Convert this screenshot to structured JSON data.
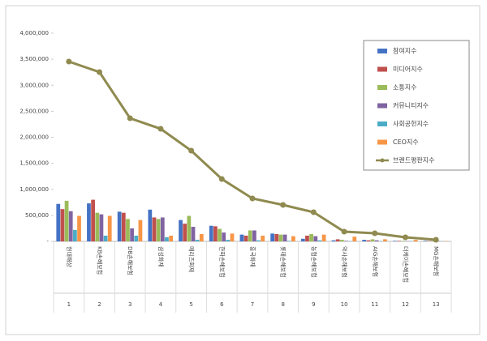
{
  "chart_data": {
    "type": "bar",
    "categories": [
      "현대해상",
      "KB손해보험",
      "DB손해보험",
      "삼성화재",
      "메리츠화재",
      "한화손해보험",
      "흥국화재",
      "롯데손해보험",
      "농협손해보험",
      "악사손해보험",
      "AIG손해보험",
      "더케이손해보험",
      "MG손해보험"
    ],
    "ranks": [
      1,
      2,
      3,
      4,
      5,
      6,
      7,
      8,
      9,
      10,
      11,
      12,
      13
    ],
    "series": [
      {
        "name": "참여지수",
        "color": "#4472c4",
        "values": [
          720000,
          730000,
          570000,
          610000,
          410000,
          300000,
          130000,
          150000,
          50000,
          20000,
          30000,
          10000,
          10000
        ]
      },
      {
        "name": "미디어지수",
        "color": "#c0504d",
        "values": [
          620000,
          800000,
          550000,
          460000,
          340000,
          290000,
          110000,
          140000,
          110000,
          40000,
          20000,
          10000,
          5000
        ]
      },
      {
        "name": "소통지수",
        "color": "#9bbb59",
        "values": [
          780000,
          550000,
          430000,
          430000,
          490000,
          240000,
          210000,
          130000,
          140000,
          30000,
          40000,
          10000,
          10000
        ]
      },
      {
        "name": "커뮤니티지수",
        "color": "#8064a2",
        "values": [
          580000,
          520000,
          250000,
          460000,
          280000,
          170000,
          210000,
          130000,
          100000,
          10000,
          20000,
          5000,
          5000
        ]
      },
      {
        "name": "사회공헌지수",
        "color": "#4bacc6",
        "values": [
          220000,
          110000,
          110000,
          80000,
          30000,
          30000,
          20000,
          10000,
          20000,
          5000,
          5000,
          5000,
          2000
        ]
      },
      {
        "name": "CEO지수",
        "color": "#f79646",
        "values": [
          490000,
          490000,
          410000,
          110000,
          140000,
          150000,
          110000,
          100000,
          130000,
          90000,
          40000,
          30000,
          5000
        ]
      },
      {
        "name": "브랜드평판지수",
        "color": "#8f8a4f",
        "type": "line",
        "values": [
          3455000,
          3253000,
          2366000,
          2163000,
          1743000,
          1198000,
          825000,
          700000,
          560000,
          187000,
          156000,
          78000,
          31000
        ]
      }
    ],
    "ylim": [
      0,
      4000000
    ],
    "yticks": [
      {
        "value": 0,
        "label": "-"
      },
      {
        "value": 500000,
        "label": "500,000"
      },
      {
        "value": 1000000,
        "label": "1,000,000"
      },
      {
        "value": 1500000,
        "label": "1,500,000"
      },
      {
        "value": 2000000,
        "label": "2,000,000"
      },
      {
        "value": 2500000,
        "label": "2,500,000"
      },
      {
        "value": 3000000,
        "label": "3,000,000"
      },
      {
        "value": 3500000,
        "label": "3,500,000"
      },
      {
        "value": 4000000,
        "label": "4,000,000"
      }
    ],
    "grid": false,
    "legend": "right"
  }
}
